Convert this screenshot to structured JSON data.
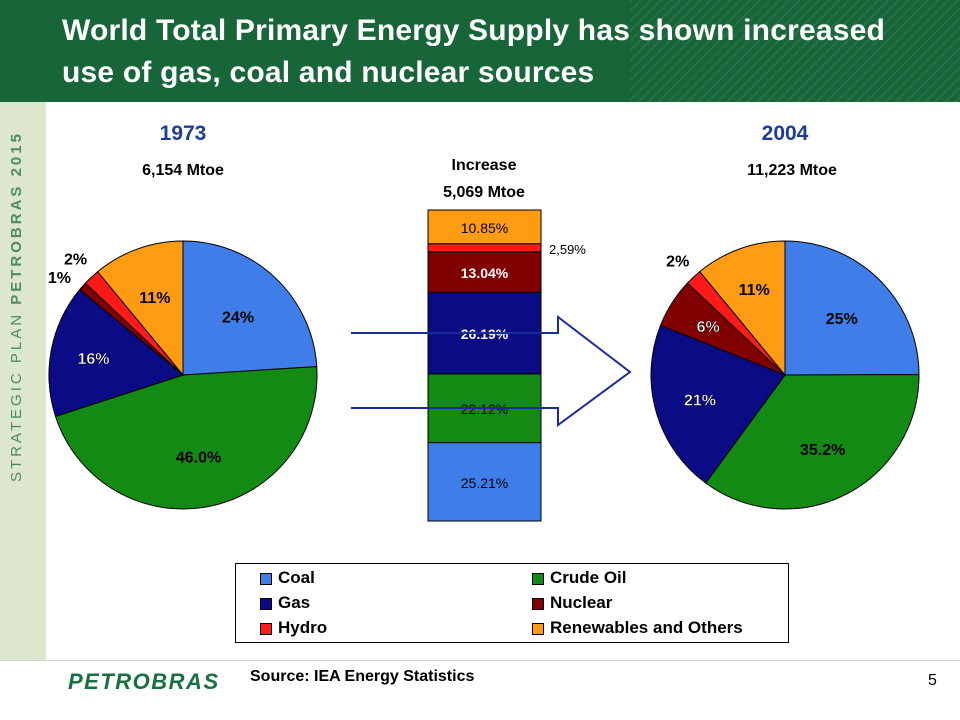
{
  "title": "World Total Primary Energy Supply has shown increased use of gas, coal and nuclear sources",
  "sidebar_text": {
    "normal": "STRATEGIC PLAN ",
    "bold": "PETROBRAS 2015"
  },
  "colors": {
    "Coal": "#3f7ee8",
    "Crude Oil": "#138a13",
    "Gas": "#0b0b85",
    "Nuclear": "#800000",
    "Hydro": "#ff1a1a",
    "Renewables and Others": "#ff9c14",
    "year": "#1f3c94",
    "header": "#18653a"
  },
  "chart_data": [
    {
      "type": "pie",
      "year": "1973",
      "total": "6,154 Mtoe",
      "slices": [
        {
          "name": "Coal",
          "value": 24,
          "label": "24%"
        },
        {
          "name": "Crude Oil",
          "value": 46.0,
          "label": "46.0%"
        },
        {
          "name": "Gas",
          "value": 16,
          "label": "16%"
        },
        {
          "name": "Nuclear",
          "value": 1,
          "label": "1%"
        },
        {
          "name": "Hydro",
          "value": 2,
          "label": "2%"
        },
        {
          "name": "Renewables and Others",
          "value": 11,
          "label": "11%"
        }
      ]
    },
    {
      "type": "bar",
      "stacked": true,
      "title": "Increase",
      "total": "5,069 Mtoe",
      "segments": [
        {
          "name": "Coal",
          "value": 25.21,
          "label": "25.21%"
        },
        {
          "name": "Crude Oil",
          "value": 22.12,
          "label": "22.12%"
        },
        {
          "name": "Gas",
          "value": 26.19,
          "label": "26.19%"
        },
        {
          "name": "Nuclear",
          "value": 13.04,
          "label": "13.04%"
        },
        {
          "name": "Hydro",
          "value": 2.59,
          "label": "2,59%"
        },
        {
          "name": "Renewables and Others",
          "value": 10.85,
          "label": "10.85%"
        }
      ]
    },
    {
      "type": "pie",
      "year": "2004",
      "total": "11,223 Mtoe",
      "slices": [
        {
          "name": "Coal",
          "value": 25,
          "label": "25%"
        },
        {
          "name": "Crude Oil",
          "value": 35.2,
          "label": "35.2%"
        },
        {
          "name": "Gas",
          "value": 21,
          "label": "21%"
        },
        {
          "name": "Nuclear",
          "value": 6,
          "label": "6%"
        },
        {
          "name": "Hydro",
          "value": 2,
          "label": "2%"
        },
        {
          "name": "Renewables and Others",
          "value": 11,
          "label": "11%"
        }
      ]
    }
  ],
  "legend": [
    "Coal",
    "Crude Oil",
    "Gas",
    "Nuclear",
    "Hydro",
    "Renewables and Others"
  ],
  "footer": {
    "logo": "PETROBRAS",
    "source": "Source: IEA Energy Statistics",
    "page": "5"
  }
}
